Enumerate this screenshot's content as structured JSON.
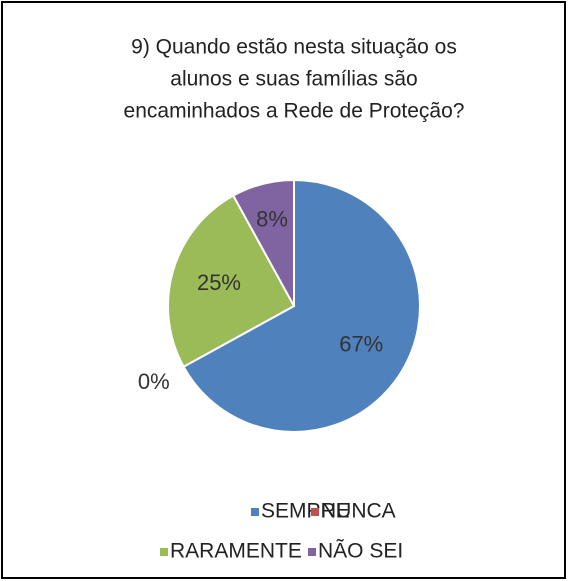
{
  "chart_data": {
    "type": "pie",
    "title": [
      "9)  Quando estão nesta situação os",
      "alunos e suas famílias são",
      "encaminhados a Rede de Proteção?"
    ],
    "categories": [
      "SEMPRE",
      "NUNCA",
      "RARAMENTE",
      "NÃO SEI"
    ],
    "values": [
      67,
      0,
      25,
      8
    ],
    "value_labels": [
      "67%",
      "0%",
      "25%",
      "8%"
    ],
    "colors": [
      "#4f81bd",
      "#c0504d",
      "#9bbb59",
      "#8064a2"
    ],
    "legend": "bottom"
  }
}
